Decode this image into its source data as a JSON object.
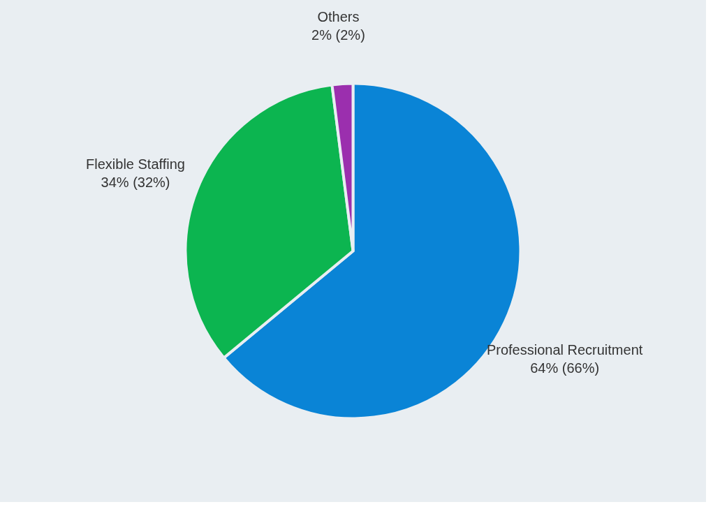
{
  "chart_data": {
    "type": "pie",
    "categories": [
      "Professional Recruitment",
      "Flexible Staffing",
      "Others"
    ],
    "values": [
      64,
      34,
      2
    ],
    "value_labels": [
      "64% (66%)",
      "34% (32%)",
      "2% (2%)"
    ],
    "colors": [
      "#0a84d6",
      "#0cb550",
      "#9b2fae"
    ],
    "legend": false
  }
}
